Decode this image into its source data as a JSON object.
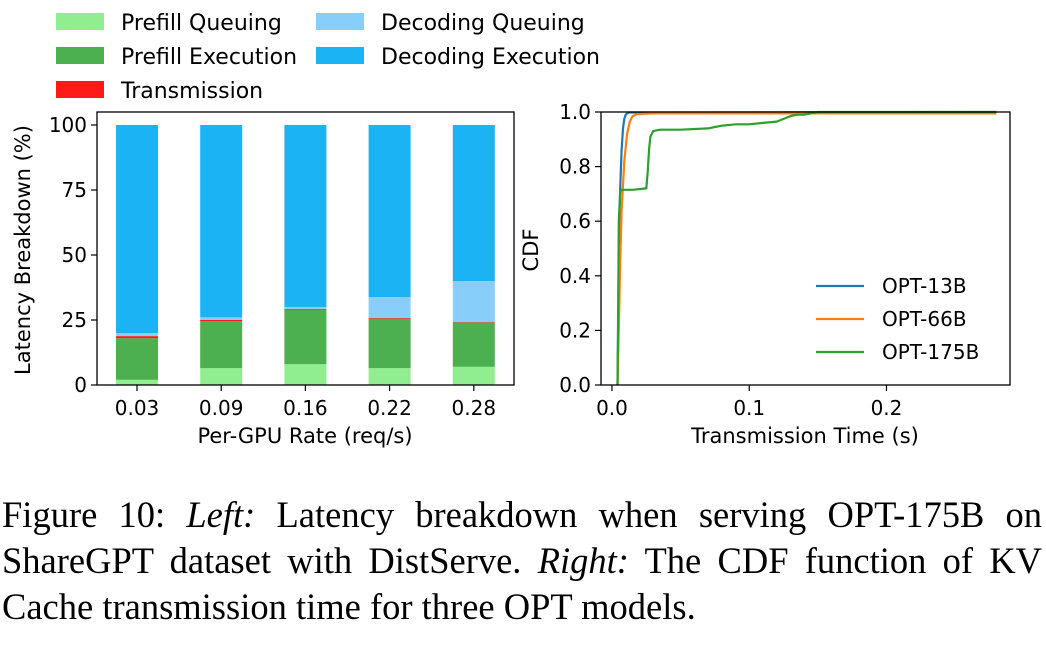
{
  "colors": {
    "prefill_queuing": "#90ee90",
    "prefill_execution": "#4caf50",
    "transmission": "#ff1a1a",
    "decoding_queuing": "#87cefa",
    "decoding_execution": "#1cb3f5",
    "opt13b": "#1f77b4",
    "opt66b": "#ff7f0e",
    "opt175b": "#2ca02c"
  },
  "legend": {
    "prefill_queuing": "Prefill Queuing",
    "prefill_execution": "Prefill Execution",
    "transmission": "Transmission",
    "decoding_queuing": "Decoding Queuing",
    "decoding_execution": "Decoding Execution"
  },
  "caption": {
    "label": "Figure 10:",
    "left_tag": "Left:",
    "left_text": "Latency breakdown when serving OPT-175B on ShareGPT dataset with DistServe.",
    "right_tag": "Right:",
    "right_text": "The CDF function of KV Cache transmission time for three OPT models."
  },
  "chart_data": [
    {
      "type": "bar",
      "stacked": true,
      "title": "",
      "xlabel": "Per-GPU Rate (req/s)",
      "ylabel": "Latency Breakdown (%)",
      "ylim": [
        0,
        100
      ],
      "yticks": [
        "0",
        "25",
        "50",
        "75",
        "100"
      ],
      "categories": [
        "0.03",
        "0.09",
        "0.16",
        "0.22",
        "0.28"
      ],
      "series": [
        {
          "name": "Prefill Queuing",
          "values": [
            2,
            6.5,
            8,
            6.5,
            7
          ]
        },
        {
          "name": "Prefill Execution",
          "values": [
            16,
            18,
            21,
            19,
            17
          ]
        },
        {
          "name": "Transmission",
          "values": [
            0.8,
            0.5,
            0.3,
            0.3,
            0.2
          ]
        },
        {
          "name": "Decoding Queuing",
          "values": [
            1.2,
            1,
            0.7,
            8,
            15.8
          ]
        },
        {
          "name": "Decoding Execution",
          "values": [
            80,
            74,
            70,
            66.2,
            60
          ]
        }
      ],
      "legend": "top, above axes, 2 columns",
      "grid": false
    },
    {
      "type": "line",
      "title": "",
      "xlabel": "Transmission Time (s)",
      "ylabel": "CDF",
      "xlim": [
        -0.008,
        0.29
      ],
      "ylim": [
        0,
        1
      ],
      "xticks": [
        "0.0",
        "0.1",
        "0.2"
      ],
      "yticks": [
        "0.0",
        "0.2",
        "0.4",
        "0.6",
        "0.8",
        "1.0"
      ],
      "legend": "lower-right",
      "grid": false,
      "series": [
        {
          "name": "OPT-13B",
          "x": [
            0.004,
            0.0045,
            0.005,
            0.006,
            0.007,
            0.008,
            0.009,
            0.01,
            0.012,
            0.28
          ],
          "y": [
            0,
            0.2,
            0.5,
            0.72,
            0.86,
            0.94,
            0.975,
            0.99,
            0.998,
            1.0
          ]
        },
        {
          "name": "OPT-66B",
          "x": [
            0.004,
            0.005,
            0.006,
            0.007,
            0.009,
            0.011,
            0.013,
            0.015,
            0.018,
            0.03,
            0.28
          ],
          "y": [
            0,
            0.2,
            0.45,
            0.64,
            0.82,
            0.92,
            0.965,
            0.985,
            0.992,
            0.995,
            0.995
          ]
        },
        {
          "name": "OPT-175B",
          "x": [
            0.004,
            0.0045,
            0.005,
            0.006,
            0.007,
            0.008,
            0.01,
            0.012,
            0.015,
            0.025,
            0.026,
            0.027,
            0.028,
            0.03,
            0.035,
            0.05,
            0.07,
            0.075,
            0.08,
            0.09,
            0.1,
            0.11,
            0.12,
            0.13,
            0.135,
            0.14,
            0.15,
            0.28
          ],
          "y": [
            0,
            0.3,
            0.6,
            0.71,
            0.715,
            0.715,
            0.715,
            0.715,
            0.715,
            0.72,
            0.78,
            0.86,
            0.91,
            0.93,
            0.935,
            0.935,
            0.94,
            0.945,
            0.95,
            0.955,
            0.955,
            0.96,
            0.965,
            0.985,
            0.99,
            0.99,
            1.0,
            1.0
          ]
        }
      ]
    }
  ]
}
